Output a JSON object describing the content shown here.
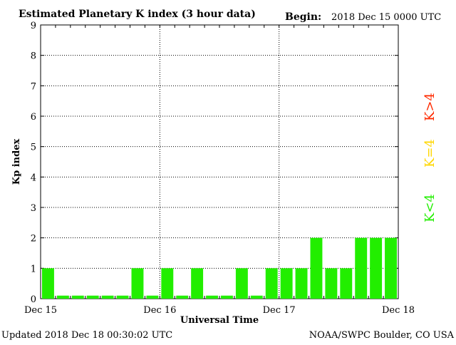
{
  "header": {
    "title": "Estimated Planetary K index (3 hour data)",
    "begin_label": "Begin:",
    "begin_value": "2018 Dec 15 0000 UTC"
  },
  "footer": {
    "updated": "Updated 2018 Dec 18 00:30:02 UTC",
    "source": "NOAA/SWPC Boulder, CO USA"
  },
  "legend": [
    {
      "label": "K>4",
      "color": "#ff2a00"
    },
    {
      "label": "K=4",
      "color": "#ffd700"
    },
    {
      "label": "K<4",
      "color": "#22ee00"
    }
  ],
  "colors": {
    "bar": "#22ee00",
    "grid": "#000000",
    "axis": "#000000"
  },
  "chart_data": {
    "type": "bar",
    "title": "Estimated Planetary K index (3 hour data)",
    "xlabel": "Universal Time",
    "ylabel": "Kp index",
    "ylim": [
      0,
      9
    ],
    "yticks": [
      "0",
      "1",
      "2",
      "3",
      "4",
      "5",
      "6",
      "7",
      "8",
      "9"
    ],
    "xticks": [
      "Dec 15",
      "Dec 16",
      "Dec 17",
      "Dec 18"
    ],
    "grid": true,
    "values": [
      1,
      0.1,
      0.1,
      0.1,
      0.1,
      0.1,
      1,
      0.1,
      1,
      0.1,
      1,
      0.1,
      0.1,
      1,
      0.1,
      1,
      1,
      1,
      2,
      1,
      1,
      2,
      2,
      2
    ]
  }
}
